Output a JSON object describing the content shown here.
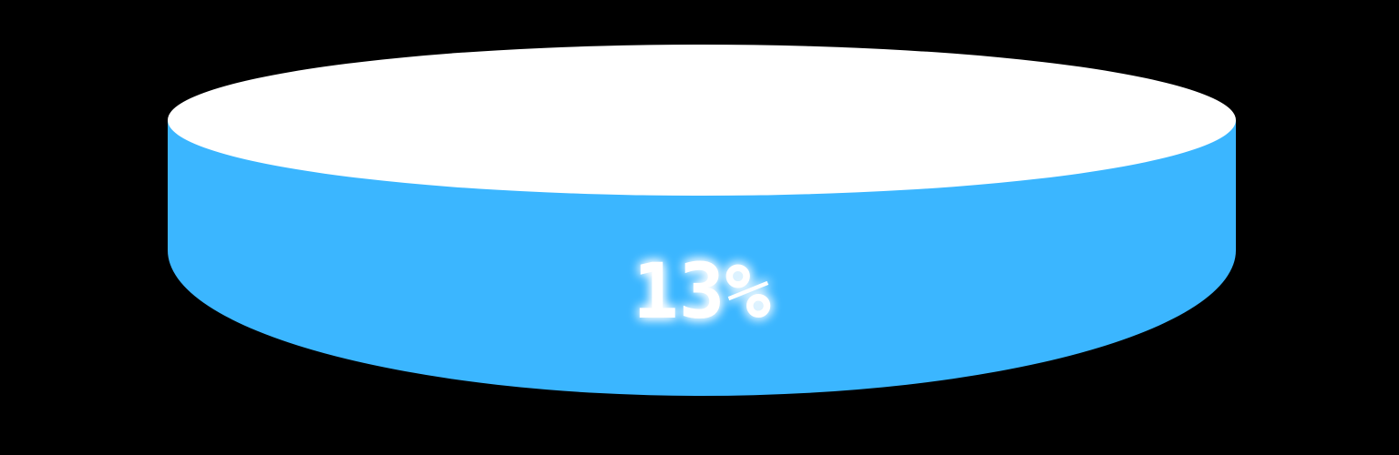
{
  "progress": {
    "label": "13%"
  }
}
